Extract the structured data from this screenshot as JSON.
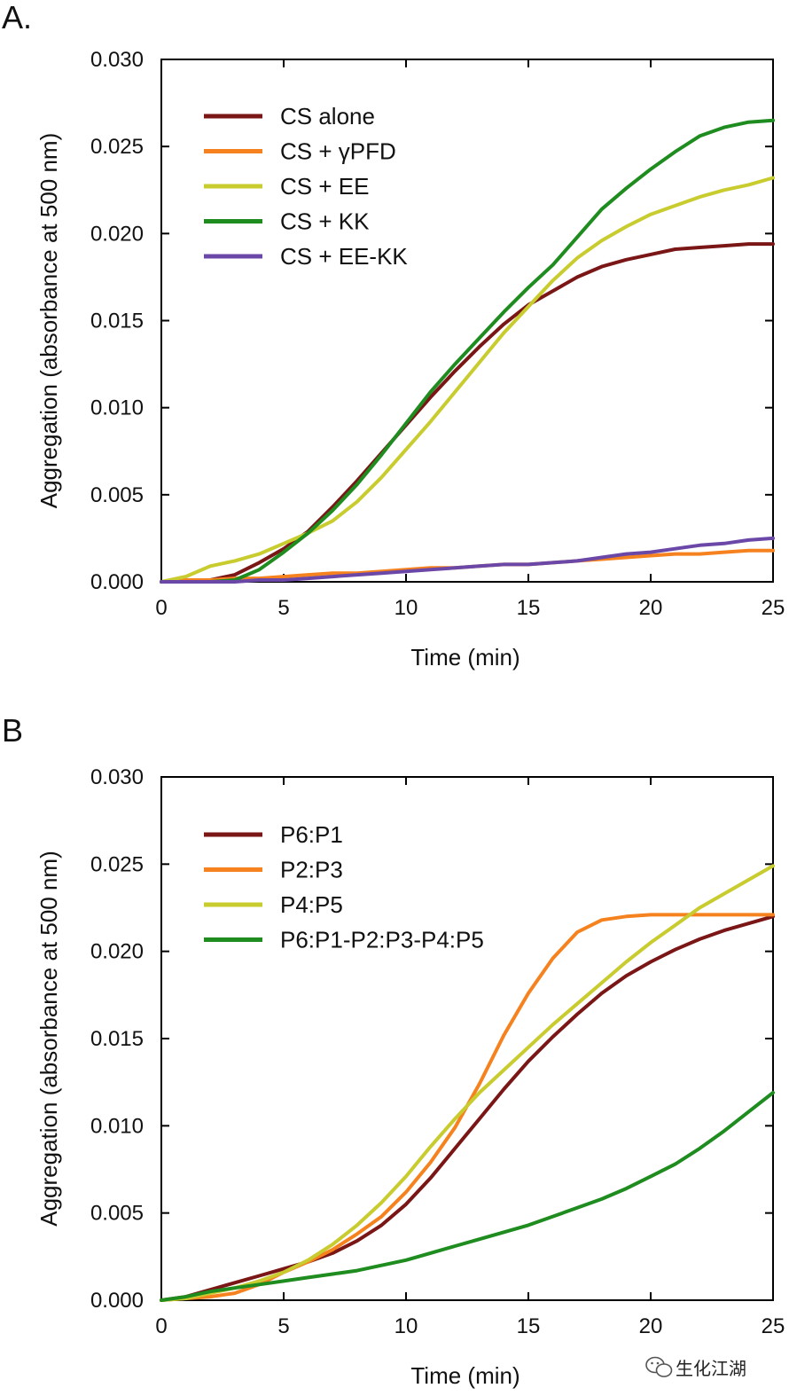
{
  "watermark": {
    "text": "生化江湖",
    "icon": "wechat-icon"
  },
  "chart_data": [
    {
      "panel_label": "A.",
      "type": "line",
      "title": "",
      "xlabel": "Time (min)",
      "ylabel": "Aggregation (absorbance at 500 nm)",
      "xlim": [
        0,
        25
      ],
      "ylim": [
        0,
        0.03
      ],
      "xticks": [
        "0",
        "5",
        "10",
        "15",
        "20",
        "25"
      ],
      "yticks": [
        "0.000",
        "0.005",
        "0.010",
        "0.015",
        "0.020",
        "0.025",
        "0.030"
      ],
      "grid": false,
      "legend_position": "top-left",
      "x": [
        0,
        1,
        2,
        3,
        4,
        5,
        6,
        7,
        8,
        9,
        10,
        11,
        12,
        13,
        14,
        15,
        16,
        17,
        18,
        19,
        20,
        21,
        22,
        23,
        24,
        25
      ],
      "series": [
        {
          "name": "CS alone",
          "color": "#7a1616",
          "values": [
            0,
            0,
            0.0001,
            0.0004,
            0.0011,
            0.0019,
            0.0029,
            0.0043,
            0.0058,
            0.0074,
            0.009,
            0.0106,
            0.0121,
            0.0135,
            0.0148,
            0.0159,
            0.0167,
            0.0175,
            0.0181,
            0.0185,
            0.0188,
            0.0191,
            0.0192,
            0.0193,
            0.0194,
            0.0194
          ]
        },
        {
          "name": "CS + γPFD",
          "color": "#f5821e",
          "values": [
            0,
            0.0001,
            0.0001,
            0.0002,
            0.0002,
            0.0003,
            0.0004,
            0.0005,
            0.0005,
            0.0006,
            0.0007,
            0.0008,
            0.0008,
            0.0009,
            0.001,
            0.001,
            0.0011,
            0.0012,
            0.0013,
            0.0014,
            0.0015,
            0.0016,
            0.0016,
            0.0017,
            0.0018,
            0.0018
          ]
        },
        {
          "name": "CS + EE",
          "color": "#c8cc2e",
          "values": [
            0,
            0.0003,
            0.0009,
            0.0012,
            0.0016,
            0.0022,
            0.0028,
            0.0035,
            0.0046,
            0.006,
            0.0076,
            0.0092,
            0.0109,
            0.0126,
            0.0143,
            0.0158,
            0.0173,
            0.0186,
            0.0196,
            0.0204,
            0.0211,
            0.0216,
            0.0221,
            0.0225,
            0.0228,
            0.0232
          ]
        },
        {
          "name": "CS + KK",
          "color": "#1e8c1e",
          "values": [
            0,
            0,
            0,
            0.0001,
            0.0007,
            0.0017,
            0.0028,
            0.0041,
            0.0056,
            0.0073,
            0.0091,
            0.0109,
            0.0125,
            0.014,
            0.0155,
            0.0169,
            0.0182,
            0.0198,
            0.0214,
            0.0226,
            0.0237,
            0.0247,
            0.0256,
            0.0261,
            0.0264,
            0.0265
          ]
        },
        {
          "name": "CS + EE-KK",
          "color": "#6b48a8",
          "values": [
            0,
            0,
            0,
            0,
            0.0001,
            0.0001,
            0.0002,
            0.0003,
            0.0004,
            0.0005,
            0.0006,
            0.0007,
            0.0008,
            0.0009,
            0.001,
            0.001,
            0.0011,
            0.0012,
            0.0014,
            0.0016,
            0.0017,
            0.0019,
            0.0021,
            0.0022,
            0.0024,
            0.0025
          ]
        }
      ]
    },
    {
      "panel_label": "B",
      "type": "line",
      "title": "",
      "xlabel": "Time (min)",
      "ylabel": "Aggregation (absorbance at 500 nm)",
      "xlim": [
        0,
        25
      ],
      "ylim": [
        0,
        0.03
      ],
      "xticks": [
        "0",
        "5",
        "10",
        "15",
        "20",
        "25"
      ],
      "yticks": [
        "0.000",
        "0.005",
        "0.010",
        "0.015",
        "0.020",
        "0.025",
        "0.030"
      ],
      "grid": false,
      "legend_position": "top-left",
      "x": [
        0,
        1,
        2,
        3,
        4,
        5,
        6,
        7,
        8,
        9,
        10,
        11,
        12,
        13,
        14,
        15,
        16,
        17,
        18,
        19,
        20,
        21,
        22,
        23,
        24,
        25
      ],
      "series": [
        {
          "name": "P6:P1",
          "color": "#7a1616",
          "values": [
            0,
            0.0002,
            0.0006,
            0.001,
            0.0014,
            0.0018,
            0.0022,
            0.0027,
            0.0034,
            0.0043,
            0.0055,
            0.007,
            0.0087,
            0.0104,
            0.0121,
            0.0137,
            0.0151,
            0.0164,
            0.0176,
            0.0186,
            0.0194,
            0.0201,
            0.0207,
            0.0212,
            0.0216,
            0.022
          ]
        },
        {
          "name": "P2:P3",
          "color": "#f5821e",
          "values": [
            0,
            0.0001,
            0.0002,
            0.0004,
            0.0009,
            0.0016,
            0.0022,
            0.0029,
            0.0038,
            0.0048,
            0.0062,
            0.0079,
            0.0099,
            0.0124,
            0.0152,
            0.0176,
            0.0196,
            0.0211,
            0.0218,
            0.022,
            0.0221,
            0.0221,
            0.0221,
            0.0221,
            0.0221,
            0.0221
          ]
        },
        {
          "name": "P4:P5",
          "color": "#c8cc2e",
          "values": [
            0,
            0.0001,
            0.0004,
            0.0007,
            0.0011,
            0.0016,
            0.0023,
            0.0032,
            0.0043,
            0.0056,
            0.0071,
            0.0088,
            0.0104,
            0.0119,
            0.0132,
            0.0145,
            0.0158,
            0.017,
            0.0182,
            0.0194,
            0.0205,
            0.0215,
            0.0225,
            0.0233,
            0.0241,
            0.0249
          ]
        },
        {
          "name": "P6:P1-P2:P3-P4:P5",
          "color": "#1e8c1e",
          "values": [
            0,
            0.0002,
            0.0005,
            0.0007,
            0.0009,
            0.0011,
            0.0013,
            0.0015,
            0.0017,
            0.002,
            0.0023,
            0.0027,
            0.0031,
            0.0035,
            0.0039,
            0.0043,
            0.0048,
            0.0053,
            0.0058,
            0.0064,
            0.0071,
            0.0078,
            0.0087,
            0.0097,
            0.0108,
            0.0119
          ]
        }
      ]
    }
  ]
}
